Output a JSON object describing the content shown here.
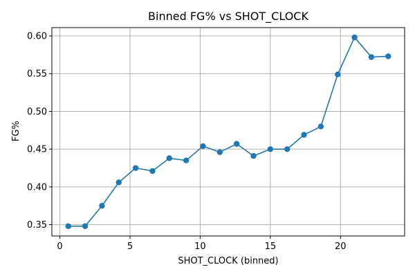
{
  "chart_data": {
    "type": "line",
    "title": "Binned FG% vs SHOT_CLOCK",
    "xlabel": "SHOT_CLOCK (binned)",
    "ylabel": "FG%",
    "xlim": [
      -0.57,
      24.57
    ],
    "ylim": [
      0.335,
      0.611
    ],
    "xticks": [
      0,
      5,
      10,
      15,
      20
    ],
    "xtick_labels": [
      "0",
      "5",
      "10",
      "15",
      "20"
    ],
    "yticks": [
      0.35,
      0.4,
      0.45,
      0.5,
      0.55,
      0.6
    ],
    "ytick_labels": [
      "0.35",
      "0.40",
      "0.45",
      "0.50",
      "0.55",
      "0.60"
    ],
    "grid": true,
    "color": "#1f77b4",
    "marker": "circle",
    "series": [
      {
        "x": [
          0.6,
          1.8,
          3.0,
          4.2,
          5.4,
          6.6,
          7.8,
          9.0,
          10.2,
          11.4,
          12.6,
          13.8,
          15.0,
          16.2,
          17.4,
          18.6,
          19.8,
          21.0,
          22.2,
          23.4
        ],
        "y": [
          0.348,
          0.348,
          0.375,
          0.406,
          0.425,
          0.421,
          0.438,
          0.435,
          0.454,
          0.446,
          0.457,
          0.441,
          0.45,
          0.45,
          0.469,
          0.48,
          0.549,
          0.598,
          0.572,
          0.573
        ]
      }
    ]
  }
}
